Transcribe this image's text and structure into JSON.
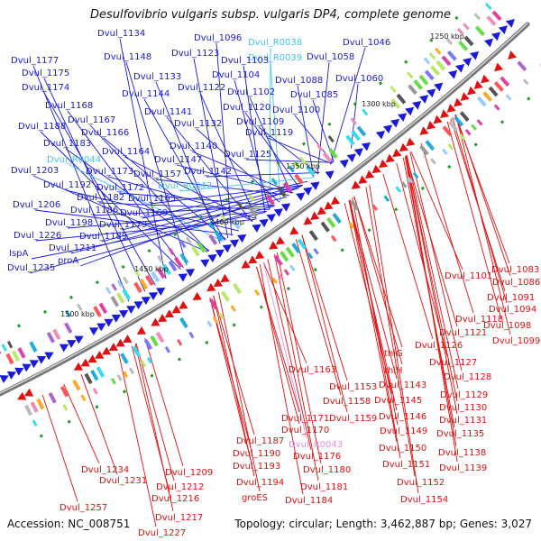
{
  "title": "Desulfovibrio vulgaris subsp. vulgaris DP4, complete genome",
  "accession_label": "Accession: NC_008751",
  "summary_label": "Topology: circular; Length: 3,462,887 bp; Genes: 3,027",
  "colors": {
    "forward": "#1a1adb",
    "reverse": "#e01010",
    "rna": "#44c4e8",
    "pseudo": "#e890e0",
    "backbone": "#888888"
  },
  "chart_data": {
    "type": "circular-genome-map",
    "sequence_length_bp": 3462887,
    "scale_ticks": [
      "1250 kbp",
      "1300 kbp",
      "1350 kbp",
      "1400 kbp",
      "1450 kbp",
      "1500 kbp"
    ],
    "forward_labels": [
      "Dvul_1134",
      "Dvul_1096",
      "Dvul_R0038",
      "Dvul_1046",
      "Dvul_1123",
      "Dvul_R0039",
      "Dvul_1058",
      "Dvul_1177",
      "Dvul_1148",
      "Dvul_1103",
      "Dvul_1175",
      "Dvul_1133",
      "Dvul_1104",
      "Dvul_1088",
      "Dvul_1060",
      "Dvul_1174",
      "Dvul_1144",
      "Dvul_1122",
      "Dvul_1102",
      "Dvul_1085",
      "Dvul_1168",
      "Dvul_1141",
      "Dvul_1120",
      "Dvul_1100",
      "Dvul_1167",
      "Dvul_1188",
      "Dvul_1132",
      "Dvul_1109",
      "Dvul_1166",
      "Dvul_1119",
      "Dvul_1183",
      "Dvul_1140",
      "Dvul_1164",
      "Dvul_1125",
      "Dvul_R0044",
      "Dvul_1147",
      "Dvul_1203",
      "Dvul_1173",
      "Dvul_1157",
      "Dvul_1142",
      "Dvul_1192",
      "Dvul_1172",
      "Dvul_R0042",
      "Dvul_1182",
      "Dvul_1165",
      "Dvul_1206",
      "Dvul_1186",
      "Dvul_1169",
      "Dvul_1198",
      "Dvul_1179",
      "Dvul_1226",
      "Dvul_1189",
      "Dvul_1211",
      "IspA",
      "proA",
      "Dvul_1235"
    ],
    "reverse_labels": [
      "Dvul_1083",
      "Dvul_1101",
      "Dvul_1086",
      "Dvul_1091",
      "Dvul_1094",
      "Dvul_1118",
      "Dvul_1098",
      "Dvul_1121",
      "Dvul_1099",
      "Dvul_1126",
      "thiG",
      "Dvul_1127",
      "Dvul_1163",
      "thiH",
      "Dvul_1128",
      "Dvul_1153",
      "Dvul_1143",
      "Dvul_1158",
      "Dvul_1145",
      "Dvul_1129",
      "Dvul_1130",
      "Dvul_1159",
      "Dvul_1146",
      "Dvul_1131",
      "Dvul_1171",
      "Dvul_1170",
      "Dvul_1149",
      "Dvul_1135",
      "Dvul_1187",
      "Dvul_R0043",
      "Dvul_1150",
      "Dvul_1138",
      "Dvul_1190",
      "Dvul_1176",
      "Dvul_1151",
      "Dvul_1139",
      "Dvul_1234",
      "Dvul_1209",
      "Dvul_1193",
      "Dvul_1180",
      "Dvul_1231",
      "Dvul_1212",
      "Dvul_1194",
      "Dvul_1181",
      "Dvul_1152",
      "Dvul_1216",
      "groES",
      "Dvul_1184",
      "Dvul_1154",
      "Dvul_1257",
      "Dvul_1217",
      "Dvul_1227"
    ]
  }
}
